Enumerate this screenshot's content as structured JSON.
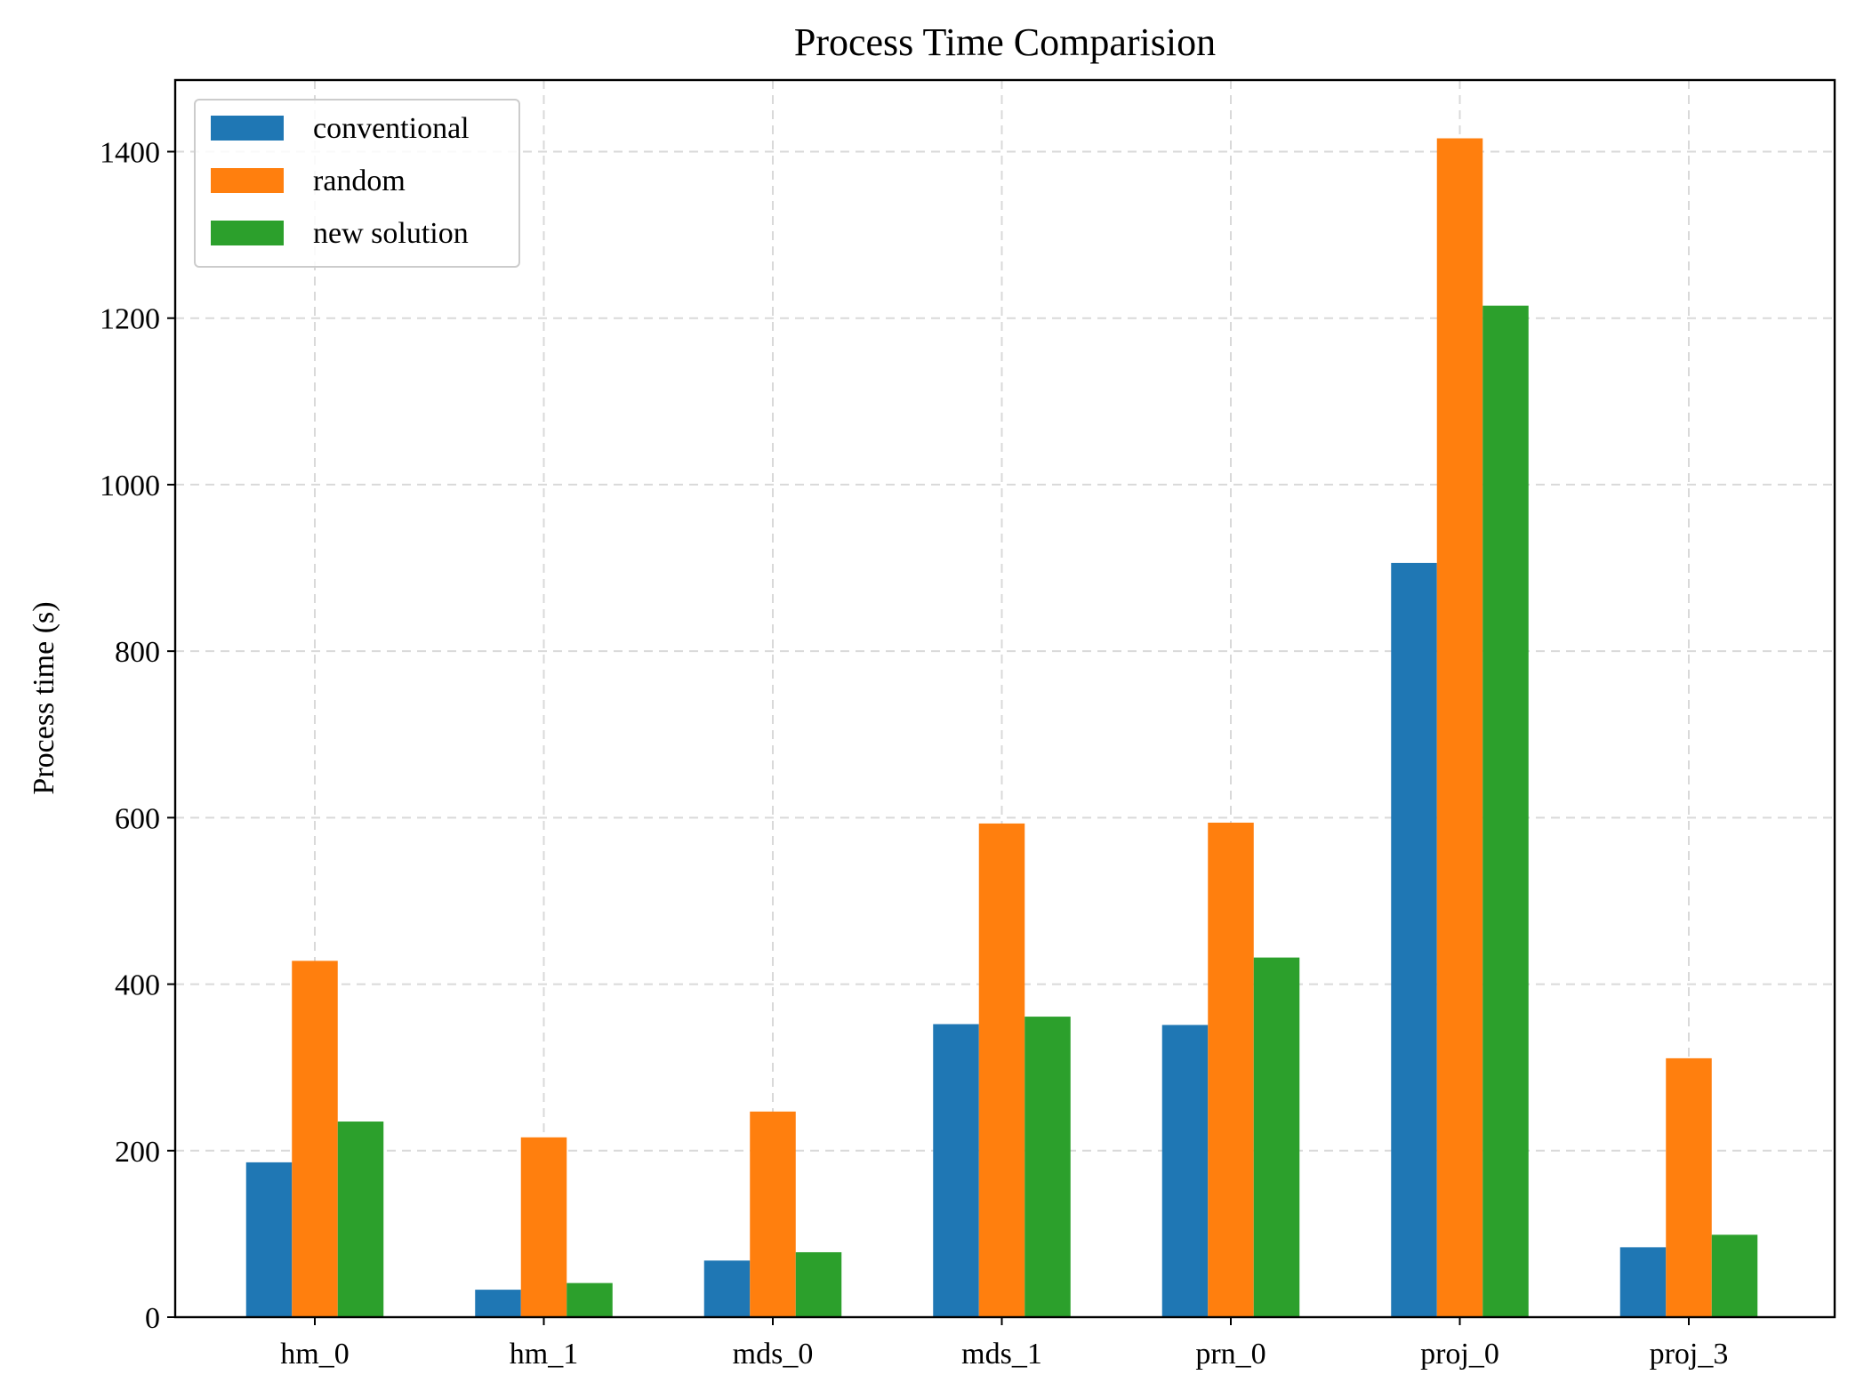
{
  "chart_data": {
    "type": "bar",
    "title": "Process Time Comparision",
    "xlabel": "",
    "ylabel": "Process time (s)",
    "categories": [
      "hm_0",
      "hm_1",
      "mds_0",
      "mds_1",
      "prn_0",
      "proj_0",
      "proj_3"
    ],
    "series": [
      {
        "name": "conventional",
        "color": "#1f77b4",
        "values": [
          186,
          33,
          68,
          352,
          351,
          906,
          84
        ]
      },
      {
        "name": "random",
        "color": "#ff7f0e",
        "values": [
          428,
          216,
          247,
          593,
          594,
          1416,
          311
        ]
      },
      {
        "name": "new solution",
        "color": "#2ca02c",
        "values": [
          235,
          41,
          78,
          361,
          432,
          1215,
          99
        ]
      }
    ],
    "ylim": [
      0,
      1486
    ],
    "yticks": [
      0,
      200,
      400,
      600,
      800,
      1000,
      1200,
      1400
    ],
    "grid": true,
    "legend_position": "top-left"
  }
}
